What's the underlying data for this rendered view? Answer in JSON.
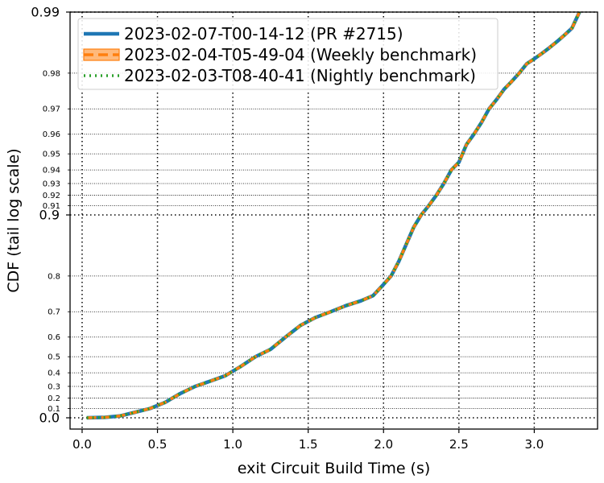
{
  "chart_data": {
    "type": "line",
    "title": "",
    "xlabel": "exit Circuit Build Time (s)",
    "ylabel": "CDF (tail log scale)",
    "xlim": [
      -0.08,
      3.42
    ],
    "yscale": "tail-log (1 - p)",
    "ylim": [
      0.0,
      0.99
    ],
    "grid": true,
    "grid_style": "dotted",
    "legend_position": "top-left",
    "x_ticks": [
      "0.0",
      "0.5",
      "1.0",
      "1.5",
      "2.0",
      "2.5",
      "3.0"
    ],
    "x_tick_values": [
      0.0,
      0.5,
      1.0,
      1.5,
      2.0,
      2.5,
      3.0
    ],
    "y_ticks_major": [
      {
        "value": 0.0,
        "label": "0.0"
      },
      {
        "value": 0.9,
        "label": "0.9"
      },
      {
        "value": 0.99,
        "label": "0.99"
      }
    ],
    "y_ticks_minor": [
      {
        "value": 0.1,
        "label": "0.1"
      },
      {
        "value": 0.2,
        "label": "0.2"
      },
      {
        "value": 0.3,
        "label": "0.3"
      },
      {
        "value": 0.4,
        "label": "0.4"
      },
      {
        "value": 0.5,
        "label": "0.5"
      },
      {
        "value": 0.6,
        "label": "0.6"
      },
      {
        "value": 0.7,
        "label": "0.7"
      },
      {
        "value": 0.8,
        "label": "0.8"
      },
      {
        "value": 0.91,
        "label": "0.91"
      },
      {
        "value": 0.92,
        "label": "0.92"
      },
      {
        "value": 0.93,
        "label": "0.93"
      },
      {
        "value": 0.94,
        "label": "0.94"
      },
      {
        "value": 0.95,
        "label": "0.95"
      },
      {
        "value": 0.96,
        "label": "0.96"
      },
      {
        "value": 0.97,
        "label": "0.97"
      },
      {
        "value": 0.98,
        "label": "0.98"
      }
    ],
    "series": [
      {
        "name": "2023-02-07-T00-14-12 (PR #2715)",
        "color": "#1f77b4",
        "style": "solid",
        "points": [
          [
            0.03,
            0.0
          ],
          [
            0.15,
            0.005
          ],
          [
            0.25,
            0.02
          ],
          [
            0.35,
            0.06
          ],
          [
            0.45,
            0.1
          ],
          [
            0.55,
            0.16
          ],
          [
            0.65,
            0.24
          ],
          [
            0.75,
            0.3
          ],
          [
            0.85,
            0.34
          ],
          [
            0.95,
            0.38
          ],
          [
            1.05,
            0.44
          ],
          [
            1.15,
            0.5
          ],
          [
            1.25,
            0.54
          ],
          [
            1.35,
            0.6
          ],
          [
            1.45,
            0.65
          ],
          [
            1.55,
            0.68
          ],
          [
            1.65,
            0.7
          ],
          [
            1.75,
            0.72
          ],
          [
            1.85,
            0.735
          ],
          [
            1.93,
            0.75
          ],
          [
            2.0,
            0.78
          ],
          [
            2.05,
            0.8
          ],
          [
            2.1,
            0.83
          ],
          [
            2.15,
            0.86
          ],
          [
            2.2,
            0.885
          ],
          [
            2.25,
            0.9
          ],
          [
            2.3,
            0.91
          ],
          [
            2.35,
            0.92
          ],
          [
            2.4,
            0.93
          ],
          [
            2.45,
            0.94
          ],
          [
            2.5,
            0.945
          ],
          [
            2.55,
            0.955
          ],
          [
            2.6,
            0.96
          ],
          [
            2.65,
            0.965
          ],
          [
            2.7,
            0.97
          ],
          [
            2.75,
            0.973
          ],
          [
            2.8,
            0.976
          ],
          [
            2.85,
            0.978
          ],
          [
            2.9,
            0.98
          ],
          [
            2.95,
            0.982
          ],
          [
            3.0,
            0.983
          ],
          [
            3.05,
            0.984
          ],
          [
            3.1,
            0.985
          ],
          [
            3.15,
            0.986
          ],
          [
            3.2,
            0.987
          ],
          [
            3.25,
            0.988
          ],
          [
            3.3,
            0.99
          ]
        ]
      },
      {
        "name": "2023-02-04-T05-49-04 (Weekly benchmark)",
        "color": "#ff7f0e",
        "style": "dashed",
        "band": true,
        "points": [
          [
            0.03,
            0.0
          ],
          [
            0.15,
            0.005
          ],
          [
            0.25,
            0.02
          ],
          [
            0.35,
            0.06
          ],
          [
            0.45,
            0.1
          ],
          [
            0.55,
            0.16
          ],
          [
            0.65,
            0.24
          ],
          [
            0.75,
            0.3
          ],
          [
            0.85,
            0.34
          ],
          [
            0.95,
            0.38
          ],
          [
            1.05,
            0.44
          ],
          [
            1.15,
            0.5
          ],
          [
            1.25,
            0.54
          ],
          [
            1.35,
            0.6
          ],
          [
            1.45,
            0.65
          ],
          [
            1.55,
            0.68
          ],
          [
            1.65,
            0.7
          ],
          [
            1.75,
            0.72
          ],
          [
            1.85,
            0.735
          ],
          [
            1.93,
            0.75
          ],
          [
            2.0,
            0.78
          ],
          [
            2.05,
            0.8
          ],
          [
            2.1,
            0.83
          ],
          [
            2.15,
            0.86
          ],
          [
            2.2,
            0.885
          ],
          [
            2.25,
            0.9
          ],
          [
            2.3,
            0.91
          ],
          [
            2.35,
            0.92
          ],
          [
            2.4,
            0.93
          ],
          [
            2.45,
            0.94
          ],
          [
            2.5,
            0.945
          ],
          [
            2.55,
            0.955
          ],
          [
            2.6,
            0.96
          ],
          [
            2.65,
            0.965
          ],
          [
            2.7,
            0.97
          ],
          [
            2.75,
            0.973
          ],
          [
            2.8,
            0.976
          ],
          [
            2.85,
            0.978
          ],
          [
            2.9,
            0.98
          ],
          [
            2.95,
            0.982
          ],
          [
            3.0,
            0.983
          ],
          [
            3.05,
            0.984
          ],
          [
            3.1,
            0.985
          ],
          [
            3.15,
            0.986
          ],
          [
            3.2,
            0.987
          ],
          [
            3.25,
            0.988
          ],
          [
            3.3,
            0.99
          ]
        ]
      },
      {
        "name": "2023-02-03-T08-40-41 (Nightly benchmark)",
        "color": "#2ca02c",
        "style": "dotted",
        "points": [
          [
            0.03,
            0.0
          ],
          [
            0.15,
            0.005
          ],
          [
            0.25,
            0.02
          ],
          [
            0.35,
            0.06
          ],
          [
            0.45,
            0.1
          ],
          [
            0.55,
            0.16
          ],
          [
            0.65,
            0.24
          ],
          [
            0.75,
            0.3
          ],
          [
            0.85,
            0.34
          ],
          [
            0.95,
            0.38
          ],
          [
            1.05,
            0.44
          ],
          [
            1.15,
            0.5
          ],
          [
            1.25,
            0.54
          ],
          [
            1.35,
            0.6
          ],
          [
            1.45,
            0.65
          ],
          [
            1.55,
            0.68
          ],
          [
            1.65,
            0.7
          ],
          [
            1.75,
            0.72
          ],
          [
            1.85,
            0.735
          ],
          [
            1.93,
            0.75
          ],
          [
            2.0,
            0.78
          ],
          [
            2.05,
            0.8
          ],
          [
            2.1,
            0.83
          ],
          [
            2.15,
            0.86
          ],
          [
            2.2,
            0.885
          ],
          [
            2.25,
            0.9
          ],
          [
            2.3,
            0.91
          ],
          [
            2.35,
            0.92
          ],
          [
            2.4,
            0.93
          ],
          [
            2.45,
            0.94
          ],
          [
            2.5,
            0.945
          ],
          [
            2.55,
            0.955
          ],
          [
            2.6,
            0.96
          ],
          [
            2.65,
            0.965
          ],
          [
            2.7,
            0.97
          ],
          [
            2.75,
            0.973
          ],
          [
            2.8,
            0.976
          ],
          [
            2.85,
            0.978
          ],
          [
            2.9,
            0.98
          ],
          [
            2.95,
            0.982
          ],
          [
            3.0,
            0.983
          ],
          [
            3.05,
            0.984
          ],
          [
            3.1,
            0.985
          ],
          [
            3.15,
            0.986
          ],
          [
            3.2,
            0.987
          ],
          [
            3.25,
            0.988
          ],
          [
            3.3,
            0.99
          ]
        ]
      }
    ]
  }
}
